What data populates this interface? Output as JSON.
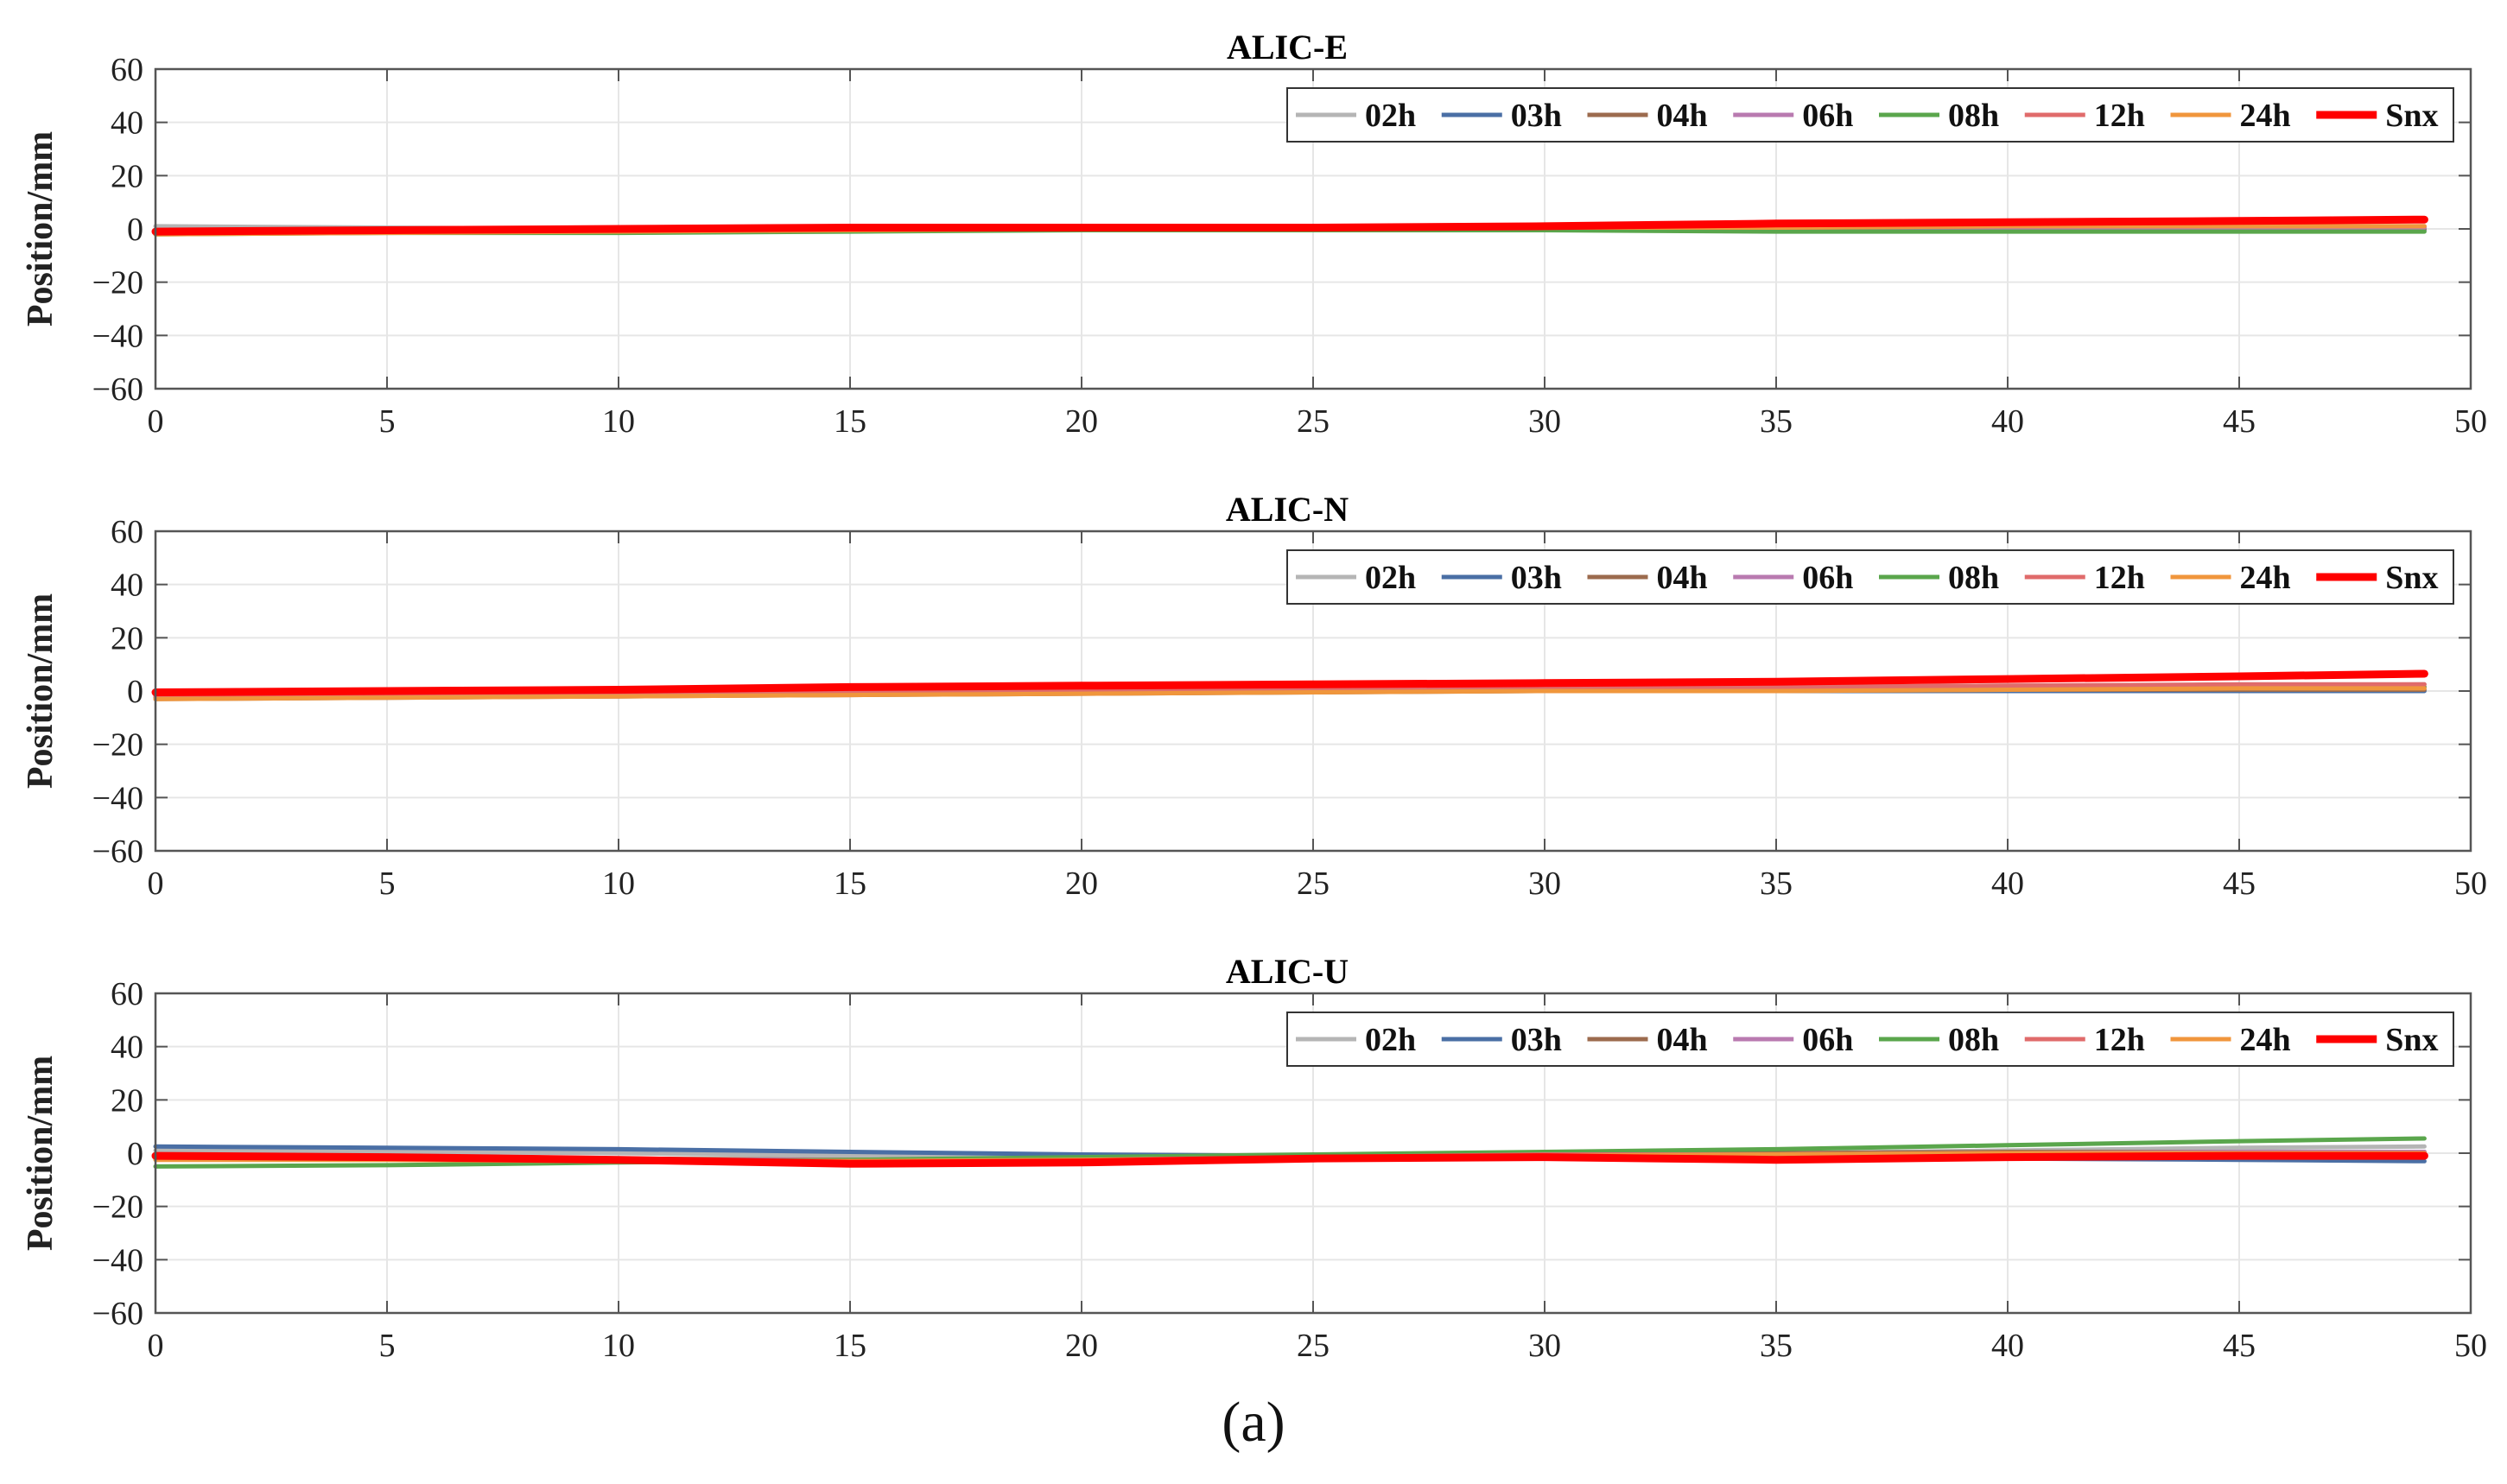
{
  "figure": {
    "caption": "(a)"
  },
  "colors": {
    "02h": "#b5b5b5",
    "03h": "#4a6fa5",
    "04h": "#9c6b4e",
    "06h": "#b97ab0",
    "08h": "#5aa64c",
    "12h": "#e06b6b",
    "24h": "#f0963c",
    "Snx": "#ff0000",
    "grid": "#e6e6e6",
    "axis": "#555555"
  },
  "chart_data": [
    {
      "type": "line",
      "title": "ALIC-E",
      "xlabel": "",
      "ylabel": "Position/mm",
      "xlim": [
        0,
        50
      ],
      "ylim": [
        -60,
        60
      ],
      "xticks": [
        0,
        5,
        10,
        15,
        20,
        25,
        30,
        35,
        40,
        45,
        50
      ],
      "yticks": [
        60,
        40,
        20,
        0,
        -20,
        -40,
        -60
      ],
      "ytick_labels": [
        "60",
        "40",
        "20",
        "0",
        "−20",
        "−40",
        "−60"
      ],
      "grid": true,
      "legend_position": "top-right",
      "x": [
        0,
        5,
        10,
        15,
        20,
        25,
        30,
        35,
        40,
        45,
        49
      ],
      "series": [
        {
          "name": "02h",
          "values": [
            1.0,
            0.5,
            0.0,
            0.0,
            0.0,
            0.0,
            0.0,
            0.5,
            0.5,
            0.5,
            0.5
          ]
        },
        {
          "name": "03h",
          "values": [
            -1.0,
            -1.0,
            -0.5,
            0.0,
            0.0,
            0.0,
            0.0,
            -0.5,
            -0.5,
            -0.5,
            -0.5
          ]
        },
        {
          "name": "04h",
          "values": [
            -1.5,
            -1.0,
            -1.0,
            -0.5,
            0.0,
            0.0,
            0.0,
            0.0,
            0.0,
            0.0,
            0.0
          ]
        },
        {
          "name": "06h",
          "values": [
            -1.0,
            -1.0,
            -0.5,
            0.0,
            0.0,
            0.0,
            0.0,
            0.0,
            0.5,
            0.5,
            0.5
          ]
        },
        {
          "name": "08h",
          "values": [
            -2.0,
            -1.5,
            -1.5,
            -1.0,
            -0.5,
            -0.5,
            -0.5,
            -1.0,
            -1.0,
            -1.0,
            -1.0
          ]
        },
        {
          "name": "12h",
          "values": [
            -1.5,
            -1.0,
            -0.5,
            0.0,
            0.0,
            0.5,
            0.5,
            0.5,
            1.0,
            1.0,
            1.0
          ]
        },
        {
          "name": "24h",
          "values": [
            -2.0,
            -1.5,
            -1.0,
            -0.5,
            0.0,
            0.0,
            0.5,
            0.5,
            1.0,
            1.0,
            1.0
          ]
        },
        {
          "name": "Snx",
          "values": [
            -1.0,
            -0.5,
            0.0,
            0.5,
            0.5,
            0.5,
            1.0,
            2.0,
            2.5,
            3.0,
            3.5
          ]
        }
      ]
    },
    {
      "type": "line",
      "title": "ALIC-N",
      "xlabel": "",
      "ylabel": "Position/mm",
      "xlim": [
        0,
        50
      ],
      "ylim": [
        -60,
        60
      ],
      "xticks": [
        0,
        5,
        10,
        15,
        20,
        25,
        30,
        35,
        40,
        45,
        50
      ],
      "yticks": [
        60,
        40,
        20,
        0,
        -20,
        -40,
        -60
      ],
      "ytick_labels": [
        "60",
        "40",
        "20",
        "0",
        "−20",
        "−40",
        "−60"
      ],
      "grid": true,
      "legend_position": "top-right",
      "x": [
        0,
        5,
        10,
        15,
        20,
        25,
        30,
        35,
        40,
        45,
        49
      ],
      "series": [
        {
          "name": "02h",
          "values": [
            -2.0,
            -1.5,
            -1.0,
            -0.5,
            0.0,
            0.5,
            1.0,
            1.5,
            2.0,
            2.0,
            2.5
          ]
        },
        {
          "name": "03h",
          "values": [
            -2.0,
            -2.0,
            -1.5,
            -1.0,
            -0.5,
            0.0,
            0.0,
            0.0,
            0.0,
            0.0,
            0.0
          ]
        },
        {
          "name": "04h",
          "values": [
            -3.0,
            -2.5,
            -2.0,
            -1.5,
            -1.0,
            -0.5,
            0.0,
            0.0,
            0.5,
            0.5,
            0.5
          ]
        },
        {
          "name": "06h",
          "values": [
            -2.5,
            -2.0,
            -1.5,
            -1.0,
            -0.5,
            0.0,
            0.5,
            1.0,
            1.0,
            1.5,
            1.5
          ]
        },
        {
          "name": "08h",
          "values": [
            -2.5,
            -2.0,
            -1.5,
            -1.0,
            -0.5,
            0.0,
            0.5,
            1.0,
            1.0,
            1.5,
            1.5
          ]
        },
        {
          "name": "12h",
          "values": [
            -2.0,
            -1.5,
            -1.0,
            -0.5,
            0.0,
            0.5,
            1.0,
            1.5,
            2.0,
            2.5,
            2.5
          ]
        },
        {
          "name": "24h",
          "values": [
            -3.0,
            -2.5,
            -2.0,
            -1.5,
            -1.0,
            -0.5,
            0.0,
            0.0,
            0.5,
            1.0,
            1.0
          ]
        },
        {
          "name": "Snx",
          "values": [
            -0.5,
            0.0,
            0.5,
            1.5,
            2.0,
            2.5,
            3.0,
            3.5,
            4.5,
            5.5,
            6.5
          ]
        }
      ]
    },
    {
      "type": "line",
      "title": "ALIC-U",
      "xlabel": "",
      "ylabel": "Position/mm",
      "xlim": [
        0,
        50
      ],
      "ylim": [
        -60,
        60
      ],
      "xticks": [
        0,
        5,
        10,
        15,
        20,
        25,
        30,
        35,
        40,
        45,
        50
      ],
      "yticks": [
        60,
        40,
        20,
        0,
        -20,
        -40,
        -60
      ],
      "ytick_labels": [
        "60",
        "40",
        "20",
        "0",
        "−20",
        "−40",
        "−60"
      ],
      "grid": true,
      "legend_position": "top-right",
      "x": [
        0,
        5,
        10,
        15,
        20,
        25,
        30,
        35,
        40,
        45,
        49
      ],
      "series": [
        {
          "name": "02h",
          "values": [
            1.0,
            0.5,
            0.0,
            -1.0,
            -1.0,
            -1.0,
            -0.5,
            0.0,
            1.0,
            2.0,
            2.5
          ]
        },
        {
          "name": "03h",
          "values": [
            2.5,
            2.0,
            1.5,
            0.5,
            -0.5,
            -1.0,
            -1.0,
            -1.5,
            -2.0,
            -2.5,
            -3.0
          ]
        },
        {
          "name": "04h",
          "values": [
            -1.0,
            -1.5,
            -2.0,
            -2.5,
            -2.0,
            -1.5,
            -0.5,
            0.0,
            0.5,
            0.5,
            0.5
          ]
        },
        {
          "name": "06h",
          "values": [
            -2.0,
            -2.0,
            -2.5,
            -2.5,
            -2.0,
            -1.5,
            -1.0,
            -0.5,
            0.0,
            0.5,
            0.5
          ]
        },
        {
          "name": "08h",
          "values": [
            -5.0,
            -4.5,
            -3.5,
            -2.5,
            -1.5,
            -0.5,
            0.5,
            1.5,
            3.0,
            4.5,
            5.5
          ]
        },
        {
          "name": "12h",
          "values": [
            -1.5,
            -2.0,
            -2.5,
            -3.0,
            -2.5,
            -1.5,
            -0.5,
            -0.5,
            0.0,
            0.0,
            0.0
          ]
        },
        {
          "name": "24h",
          "values": [
            -2.5,
            -2.5,
            -3.0,
            -3.0,
            -2.5,
            -2.0,
            -1.0,
            -0.5,
            0.0,
            0.0,
            0.0
          ]
        },
        {
          "name": "Snx",
          "values": [
            -1.0,
            -1.5,
            -2.5,
            -4.0,
            -3.5,
            -2.0,
            -1.5,
            -2.5,
            -1.5,
            -1.0,
            -1.0
          ]
        }
      ]
    }
  ]
}
